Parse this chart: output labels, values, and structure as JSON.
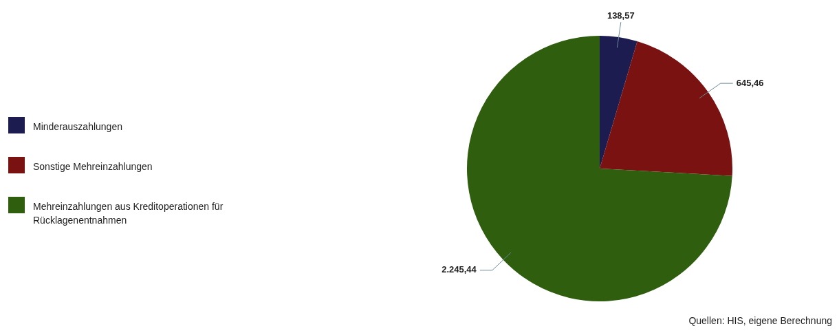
{
  "chart_data": {
    "type": "pie",
    "categories": [
      "Minderauszahlungen",
      "Sonstige Mehreinzahlungen",
      "Mehreinzahlungen aus Kreditoperationen für Rücklagenentnahmen"
    ],
    "values": [
      138.57,
      645.46,
      2245.44
    ],
    "value_labels": [
      "138,57",
      "645,46",
      "2.245,44"
    ],
    "colors": [
      "#1c1c50",
      "#7a1212",
      "#2e5e0e"
    ],
    "legend": "left",
    "annotations": [
      "Quellen: HIS, eigene Berechnung"
    ]
  }
}
